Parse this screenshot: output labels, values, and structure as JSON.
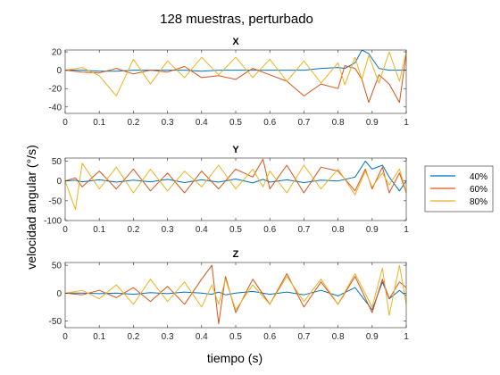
{
  "figure": {
    "suptitle": "128 muestras, perturbado",
    "xlabel": "tiempo (s)",
    "ylabel": "velocidad angular (°/s)"
  },
  "colors": {
    "40%": "#0072BD",
    "60%": "#D95319",
    "80%": "#EDB120"
  },
  "chart_data": [
    {
      "type": "line",
      "title": "X",
      "xlim": [
        0,
        1
      ],
      "ylim": [
        -47,
        22
      ],
      "yticks": [
        20,
        0,
        -20,
        -40
      ],
      "xticks": [
        0,
        0.1,
        0.2,
        0.3,
        0.4,
        0.5,
        0.6,
        0.7,
        0.8,
        0.9,
        1
      ],
      "x": [
        0,
        0.05,
        0.1,
        0.15,
        0.2,
        0.25,
        0.3,
        0.35,
        0.4,
        0.45,
        0.5,
        0.55,
        0.6,
        0.65,
        0.7,
        0.75,
        0.8,
        0.82,
        0.85,
        0.87,
        0.89,
        0.92,
        0.95,
        0.98,
        1
      ],
      "series": [
        {
          "name": "40%",
          "values": [
            0,
            0,
            -1,
            -1,
            0,
            0,
            0,
            0,
            -1,
            0,
            0,
            0,
            0,
            0,
            0,
            2,
            3,
            2,
            8,
            22,
            18,
            2,
            0,
            0,
            0
          ]
        },
        {
          "name": "60%",
          "values": [
            0,
            -2,
            -3,
            2,
            -4,
            0,
            -2,
            4,
            -8,
            -6,
            -10,
            2,
            -5,
            -12,
            -28,
            -15,
            -20,
            5,
            2,
            -10,
            -35,
            -5,
            -15,
            -35,
            18
          ]
        },
        {
          "name": "80%",
          "values": [
            0,
            3,
            -6,
            -28,
            12,
            -15,
            10,
            -8,
            14,
            -5,
            14,
            -8,
            12,
            -12,
            10,
            -14,
            8,
            -16,
            14,
            -10,
            16,
            -14,
            20,
            -12,
            20
          ]
        }
      ]
    },
    {
      "type": "line",
      "title": "Y",
      "xlim": [
        0,
        1
      ],
      "ylim": [
        -100,
        58
      ],
      "yticks": [
        50,
        0,
        -50,
        -100
      ],
      "xticks": [
        0,
        0.1,
        0.2,
        0.3,
        0.4,
        0.5,
        0.6,
        0.7,
        0.8,
        0.9,
        1
      ],
      "x": [
        0,
        0.03,
        0.05,
        0.1,
        0.15,
        0.2,
        0.25,
        0.3,
        0.35,
        0.4,
        0.45,
        0.5,
        0.55,
        0.58,
        0.6,
        0.65,
        0.7,
        0.75,
        0.8,
        0.85,
        0.88,
        0.9,
        0.93,
        0.95,
        0.98,
        1
      ],
      "series": [
        {
          "name": "40%",
          "values": [
            0,
            2,
            -2,
            3,
            -3,
            2,
            -2,
            4,
            -4,
            3,
            -3,
            5,
            -5,
            4,
            -3,
            3,
            -4,
            2,
            0,
            10,
            50,
            30,
            40,
            10,
            -25,
            0
          ]
        },
        {
          "name": "60%",
          "values": [
            0,
            8,
            -15,
            25,
            -20,
            30,
            -25,
            20,
            -30,
            25,
            -20,
            30,
            10,
            55,
            -20,
            40,
            -30,
            35,
            25,
            -25,
            30,
            -20,
            35,
            -30,
            20,
            -30
          ]
        },
        {
          "name": "80%",
          "values": [
            0,
            -72,
            45,
            -20,
            35,
            -30,
            30,
            -25,
            25,
            -15,
            40,
            -20,
            30,
            -15,
            25,
            -30,
            40,
            -20,
            30,
            -35,
            25,
            -15,
            20,
            -10,
            30,
            -28
          ]
        }
      ]
    },
    {
      "type": "line",
      "title": "Z",
      "xlim": [
        0,
        1
      ],
      "ylim": [
        -62,
        55
      ],
      "yticks": [
        50,
        0,
        -50
      ],
      "xticks": [
        0,
        0.1,
        0.2,
        0.3,
        0.4,
        0.5,
        0.6,
        0.7,
        0.8,
        0.9,
        1
      ],
      "x": [
        0,
        0.05,
        0.1,
        0.15,
        0.2,
        0.25,
        0.3,
        0.35,
        0.4,
        0.43,
        0.45,
        0.47,
        0.5,
        0.55,
        0.6,
        0.65,
        0.7,
        0.75,
        0.8,
        0.85,
        0.9,
        0.93,
        0.95,
        0.98,
        1
      ],
      "series": [
        {
          "name": "40%",
          "values": [
            0,
            0,
            -1,
            0,
            -2,
            1,
            -1,
            2,
            0,
            -2,
            2,
            -3,
            0,
            3,
            -2,
            2,
            -3,
            5,
            -5,
            10,
            -30,
            20,
            -10,
            5,
            -5
          ]
        },
        {
          "name": "60%",
          "values": [
            0,
            -3,
            5,
            -8,
            10,
            -15,
            12,
            -20,
            25,
            50,
            -55,
            30,
            -35,
            25,
            -20,
            35,
            -25,
            20,
            -20,
            30,
            -35,
            25,
            -10,
            20,
            10
          ]
        },
        {
          "name": "80%",
          "values": [
            0,
            5,
            -10,
            15,
            -20,
            25,
            -15,
            20,
            -25,
            15,
            -20,
            25,
            -30,
            15,
            -20,
            30,
            -15,
            25,
            -20,
            35,
            -25,
            45,
            -40,
            50,
            -20
          ]
        }
      ]
    }
  ]
}
